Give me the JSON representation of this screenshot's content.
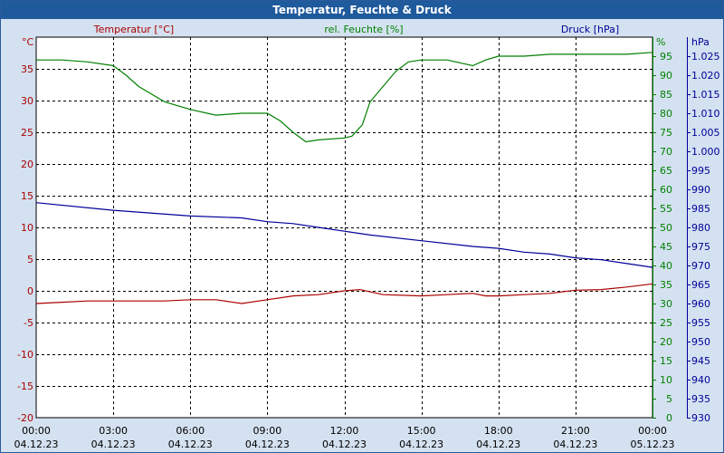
{
  "window": {
    "title": "Temperatur, Feuchte & Druck"
  },
  "chart_data": {
    "type": "line",
    "title": "Temperatur, Feuchte & Druck",
    "grid": true,
    "x": {
      "tick_times": [
        "00:00",
        "03:00",
        "06:00",
        "09:00",
        "12:00",
        "15:00",
        "18:00",
        "21:00",
        "00:00"
      ],
      "tick_dates": [
        "04.12.23",
        "04.12.23",
        "04.12.23",
        "04.12.23",
        "04.12.23",
        "04.12.23",
        "04.12.23",
        "04.12.23",
        "05.12.23"
      ],
      "range_hours": [
        0,
        24
      ]
    },
    "axes": {
      "temp": {
        "label": "Temperatur [°C]",
        "unit": "°C",
        "color": "#aa0000",
        "range": [
          -20,
          40
        ],
        "ticks": [
          35,
          30,
          25,
          20,
          15,
          10,
          5,
          0,
          -5,
          -10,
          -15,
          -20
        ]
      },
      "hum": {
        "label": "rel. Feuchte [%]",
        "unit": "%",
        "color": "#008000",
        "range": [
          0,
          100
        ],
        "ticks": [
          95,
          90,
          85,
          80,
          75,
          70,
          65,
          60,
          55,
          50,
          45,
          40,
          35,
          30,
          25,
          20,
          15,
          10,
          5,
          0
        ]
      },
      "press": {
        "label": "Druck [hPa]",
        "unit": "hPa",
        "color": "#000099",
        "range": [
          930,
          1030
        ],
        "ticks": [
          "1.025",
          "1.020",
          "1.015",
          "1.010",
          "1.005",
          "1.000",
          "995",
          "990",
          "985",
          "980",
          "975",
          "970",
          "965",
          "960",
          "955",
          "950",
          "945",
          "940",
          "935",
          "930"
        ]
      }
    },
    "series": [
      {
        "name": "Temperatur [°C]",
        "axis": "temp",
        "color": "#aa0000",
        "x": [
          0,
          1,
          2,
          3,
          4,
          5,
          6,
          7,
          8,
          9,
          10,
          11,
          12,
          12.6,
          13.5,
          15,
          16,
          17,
          17.5,
          18,
          19,
          20,
          21,
          22,
          23,
          24
        ],
        "y": [
          -2.0,
          -1.8,
          -1.6,
          -1.6,
          -1.6,
          -1.6,
          -1.4,
          -1.4,
          -2.0,
          -1.4,
          -0.8,
          -0.6,
          0.0,
          0.2,
          -0.6,
          -0.8,
          -0.6,
          -0.4,
          -0.8,
          -0.8,
          -0.6,
          -0.4,
          0.1,
          0.2,
          0.6,
          1.1
        ]
      },
      {
        "name": "rel. Feuchte [%]",
        "axis": "hum",
        "color": "#008000",
        "x": [
          0,
          1,
          2,
          3,
          3.5,
          4,
          5,
          6,
          7,
          8,
          9,
          9.5,
          10,
          10.5,
          11,
          12,
          12.3,
          12.7,
          13,
          14,
          14.5,
          15,
          16,
          17,
          17.5,
          18,
          19,
          20,
          21,
          22,
          23,
          24
        ],
        "y": [
          94,
          94,
          93.5,
          92.5,
          90,
          87,
          83,
          81,
          79.5,
          80,
          80,
          78,
          75,
          72.5,
          73,
          73.5,
          74,
          77,
          83,
          91,
          93.5,
          94,
          94,
          92.5,
          94,
          95,
          95,
          95.5,
          95.5,
          95.5,
          95.5,
          96
        ]
      },
      {
        "name": "Druck [hPa]",
        "axis": "press",
        "color": "#000099",
        "x": [
          0,
          3,
          6,
          8,
          9,
          10,
          11,
          12,
          13,
          15,
          17,
          18,
          19,
          20,
          21,
          22,
          23,
          24
        ],
        "y": [
          986.5,
          984.5,
          983,
          982.5,
          981.5,
          981,
          980,
          979,
          978,
          976.5,
          975,
          974.5,
          973.5,
          973,
          972,
          971.5,
          970.5,
          969.5
        ]
      }
    ]
  }
}
